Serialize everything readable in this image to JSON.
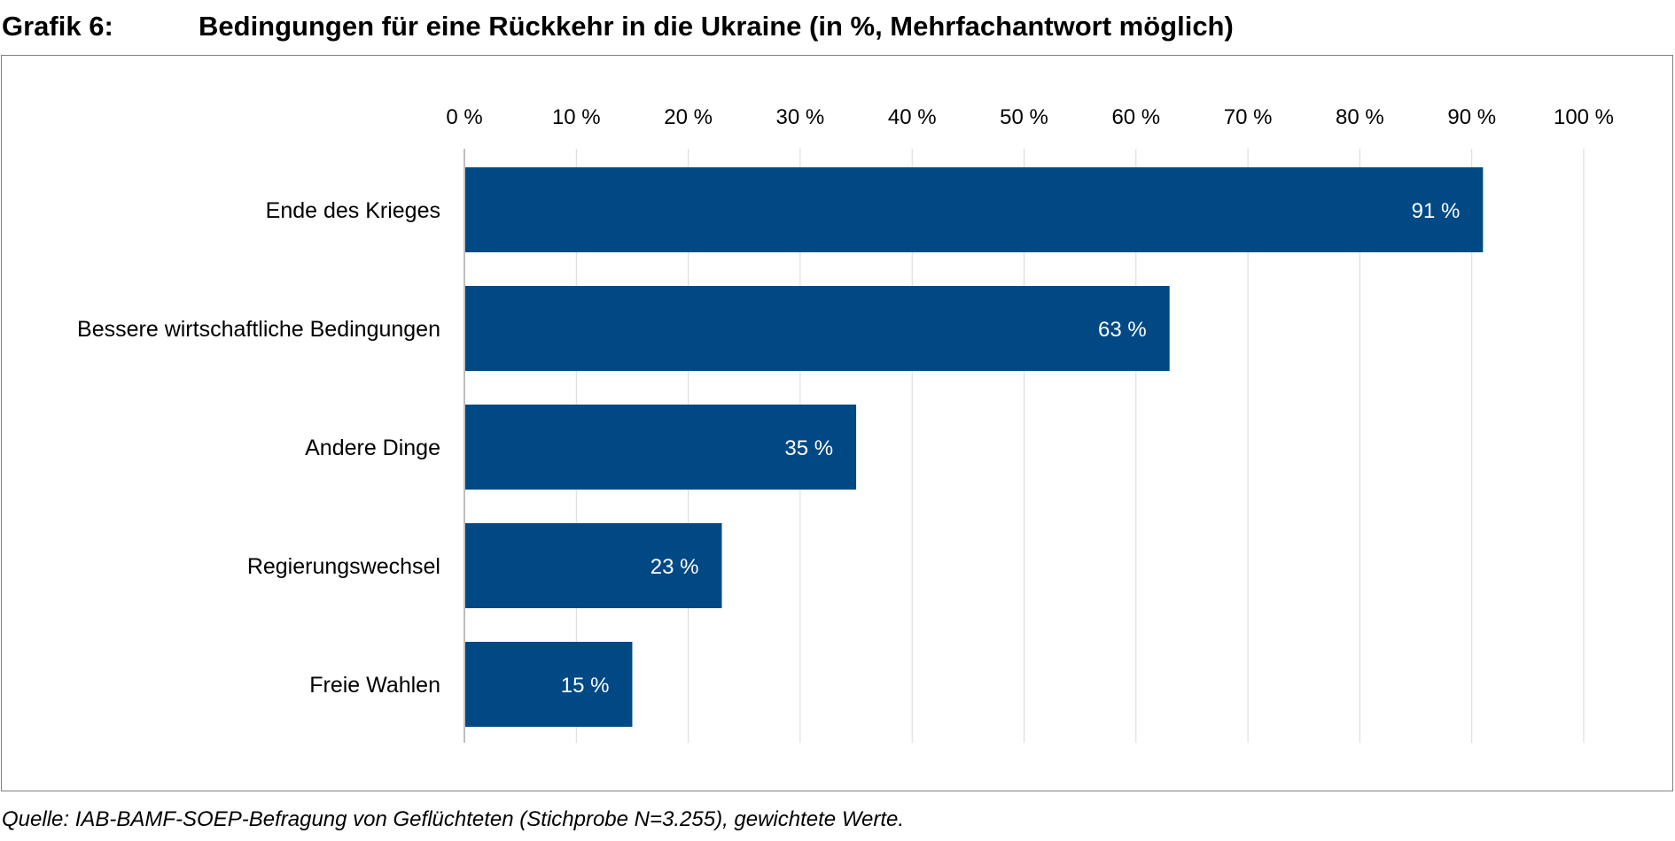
{
  "header": {
    "label": "Grafik 6:",
    "title": "Bedingungen für eine Rückkehr in die Ukraine (in %, Mehrfachantwort möglich)"
  },
  "source": "Quelle: IAB-BAMF-SOEP-Befragung von Geflüchteten (Stichprobe N=3.255), gewichtete Werte.",
  "colors": {
    "bar": "#004985",
    "grid": "#d9d9d9",
    "axis": "#bfbfbf",
    "frame": "#808080"
  },
  "chart_data": {
    "type": "bar",
    "orientation": "horizontal",
    "title": "Bedingungen für eine Rückkehr in die Ukraine (in %, Mehrfachantwort möglich)",
    "categories": [
      "Ende des Krieges",
      "Bessere wirtschaftliche Bedingungen",
      "Andere Dinge",
      "Regierungswechsel",
      "Freie Wahlen"
    ],
    "values": [
      91,
      63,
      35,
      23,
      15
    ],
    "data_labels": [
      "91 %",
      "63 %",
      "35 %",
      "23 %",
      "15 %"
    ],
    "xlim": [
      0,
      100
    ],
    "x_ticks": [
      0,
      10,
      20,
      30,
      40,
      50,
      60,
      70,
      80,
      90,
      100
    ],
    "x_tick_labels": [
      "0 %",
      "10 %",
      "20 %",
      "30 %",
      "40 %",
      "50 %",
      "60 %",
      "70 %",
      "80 %",
      "90 %",
      "100 %"
    ],
    "x_axis_position": "top",
    "grid": true,
    "legend": false
  }
}
